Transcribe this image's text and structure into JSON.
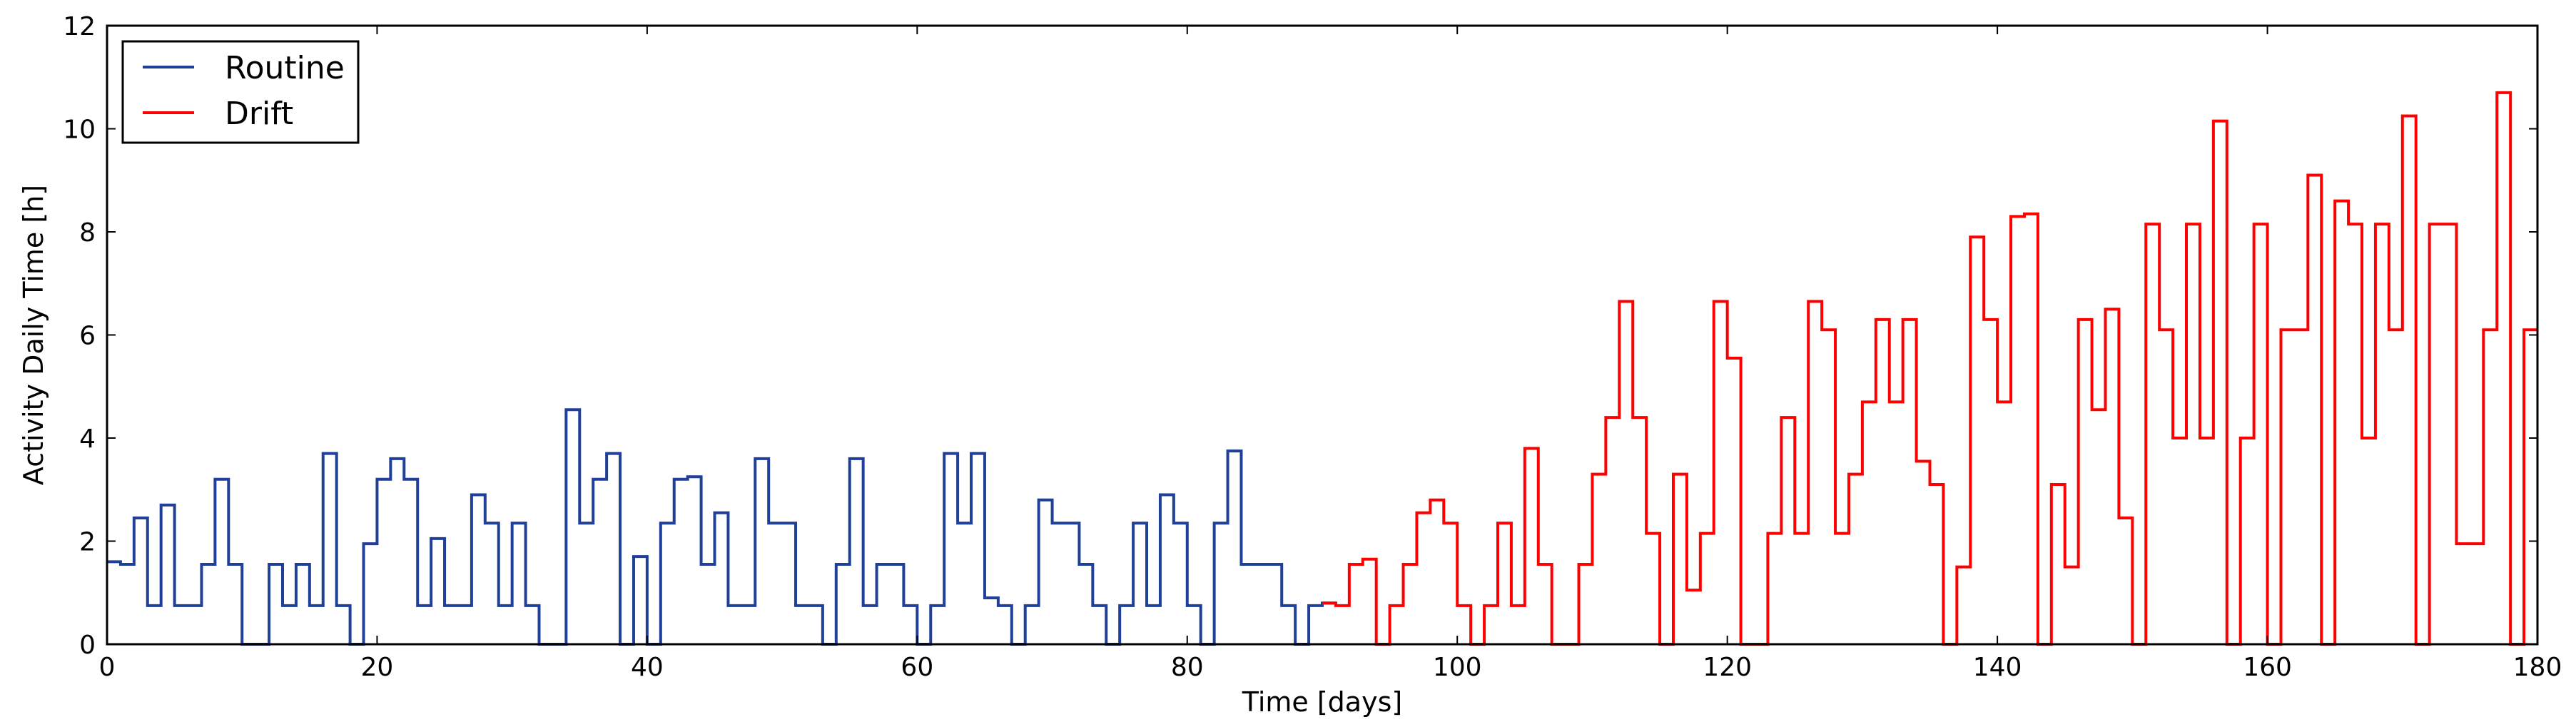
{
  "chart_data": {
    "type": "line",
    "drawstyle": "steps-post",
    "title": "",
    "xlabel": "Time [days]",
    "ylabel": "Activity Daily Time [h]",
    "xlim": [
      0,
      180
    ],
    "ylim": [
      0,
      12
    ],
    "xticks": [
      0,
      20,
      40,
      60,
      80,
      100,
      120,
      140,
      160,
      180
    ],
    "yticks": [
      0,
      2,
      4,
      6,
      8,
      10,
      12
    ],
    "grid": false,
    "legend_position": "top-left",
    "series": [
      {
        "name": "Routine",
        "color": "#1f3f99",
        "x": [
          0,
          1,
          2,
          3,
          4,
          5,
          6,
          7,
          8,
          9,
          10,
          11,
          12,
          13,
          14,
          15,
          16,
          17,
          18,
          19,
          20,
          21,
          22,
          23,
          24,
          25,
          26,
          27,
          28,
          29,
          30,
          31,
          32,
          33,
          34,
          35,
          36,
          37,
          38,
          39,
          40,
          41,
          42,
          43,
          44,
          45,
          46,
          47,
          48,
          49,
          50,
          51,
          52,
          53,
          54,
          55,
          56,
          57,
          58,
          59,
          60,
          61,
          62,
          63,
          64,
          65,
          66,
          67,
          68,
          69,
          70,
          71,
          72,
          73,
          74,
          75,
          76,
          77,
          78,
          79,
          80,
          81,
          82,
          83,
          84,
          85,
          86,
          87,
          88,
          89,
          90
        ],
        "y": [
          1.6,
          1.55,
          2.45,
          0.75,
          2.7,
          0.75,
          0.75,
          1.55,
          3.2,
          1.55,
          0,
          0,
          1.55,
          0.75,
          1.55,
          0.75,
          3.7,
          0.75,
          0,
          1.95,
          3.2,
          3.6,
          3.2,
          0.75,
          2.05,
          0.75,
          0.75,
          2.9,
          2.35,
          0.75,
          2.35,
          0.75,
          0,
          0,
          4.55,
          2.35,
          3.2,
          3.7,
          0,
          1.7,
          0,
          2.35,
          3.2,
          3.25,
          1.55,
          2.55,
          0.75,
          0.75,
          3.6,
          2.35,
          2.35,
          0.75,
          0.75,
          0,
          1.55,
          3.6,
          0.75,
          1.55,
          1.55,
          0.75,
          0,
          0.75,
          3.7,
          2.35,
          3.7,
          0.9,
          0.75,
          0,
          0.75,
          2.8,
          2.35,
          2.35,
          1.55,
          0.75,
          0,
          0.75,
          2.35,
          0.75,
          2.9,
          2.35,
          0.75,
          0,
          2.35,
          3.75,
          1.55,
          1.55,
          1.55,
          0.75,
          0,
          0.75,
          0.8
        ]
      },
      {
        "name": "Drift",
        "color": "#ff0000",
        "x": [
          90,
          91,
          92,
          93,
          94,
          95,
          96,
          97,
          98,
          99,
          100,
          101,
          102,
          103,
          104,
          105,
          106,
          107,
          108,
          109,
          110,
          111,
          112,
          113,
          114,
          115,
          116,
          117,
          118,
          119,
          120,
          121,
          122,
          123,
          124,
          125,
          126,
          127,
          128,
          129,
          130,
          131,
          132,
          133,
          134,
          135,
          136,
          137,
          138,
          139,
          140,
          141,
          142,
          143,
          144,
          145,
          146,
          147,
          148,
          149,
          150,
          151,
          152,
          153,
          154,
          155,
          156,
          157,
          158,
          159,
          160,
          161,
          162,
          163,
          164,
          165,
          166,
          167,
          168,
          169,
          170,
          171,
          172,
          173,
          174,
          175,
          176,
          177,
          178,
          179
        ],
        "y": [
          0.8,
          0.75,
          1.55,
          1.65,
          0,
          0.75,
          1.55,
          2.55,
          2.8,
          2.35,
          0.75,
          0,
          0.75,
          2.35,
          0.75,
          3.8,
          1.55,
          0,
          0,
          1.55,
          3.3,
          4.4,
          6.65,
          4.4,
          2.15,
          0,
          3.3,
          1.05,
          2.15,
          6.65,
          5.55,
          0,
          0,
          2.15,
          4.4,
          2.15,
          6.65,
          6.1,
          2.15,
          3.3,
          4.7,
          6.3,
          4.7,
          6.3,
          3.55,
          3.1,
          0,
          1.5,
          7.9,
          6.3,
          4.7,
          8.3,
          8.35,
          0,
          3.1,
          1.5,
          6.3,
          4.55,
          6.5,
          2.45,
          0,
          8.15,
          6.1,
          4.0,
          8.15,
          4.0,
          10.15,
          0,
          4.0,
          8.15,
          0,
          6.1,
          6.1,
          9.1,
          0,
          8.6,
          8.15,
          4.0,
          8.15,
          6.1,
          10.25,
          0,
          8.15,
          8.15,
          1.95,
          1.95,
          6.1,
          10.7,
          0,
          6.1
        ]
      }
    ]
  }
}
